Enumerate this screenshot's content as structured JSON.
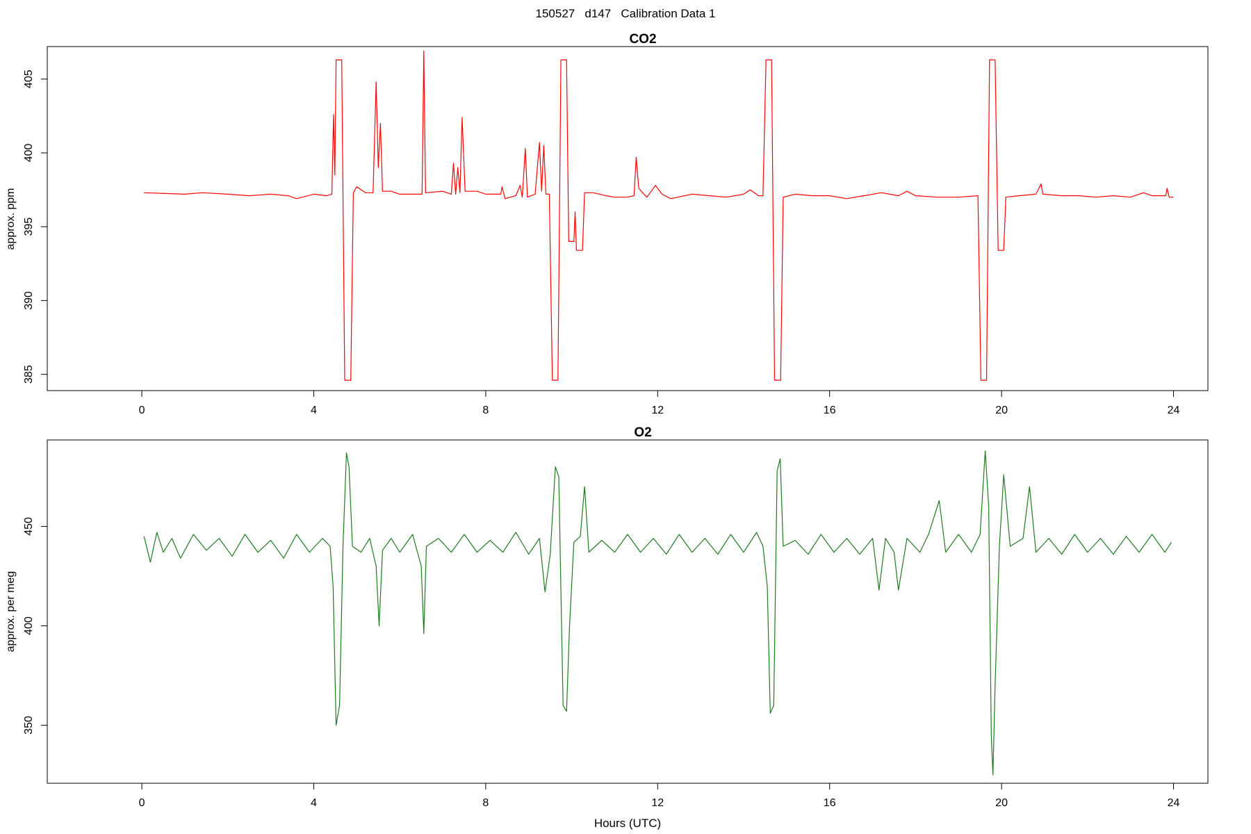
{
  "figure_title": "150527   d147   Calibration Data 1",
  "chart_data": [
    {
      "type": "line",
      "title": "CO2",
      "xlabel": "",
      "ylabel": "approx. ppm",
      "xlim": [
        -2.2,
        24.8
      ],
      "ylim": [
        383.9,
        407.2
      ],
      "xticks": [
        0,
        4,
        8,
        12,
        16,
        20,
        24
      ],
      "yticks": [
        385,
        390,
        395,
        400,
        405
      ],
      "x_tick_labels": [
        "0",
        "4",
        "8",
        "12",
        "16",
        "20",
        "24"
      ],
      "y_tick_labels": [
        "385",
        "390",
        "395",
        "400",
        "405"
      ],
      "grid": false,
      "series": [
        {
          "color": "#ff0000",
          "points": [
            [
              0.05,
              397.3
            ],
            [
              1.0,
              397.2
            ],
            [
              1.4,
              397.3
            ],
            [
              2.0,
              397.2
            ],
            [
              2.5,
              397.1
            ],
            [
              3.0,
              397.2
            ],
            [
              3.4,
              397.1
            ],
            [
              3.6,
              396.9
            ],
            [
              4.0,
              397.2
            ],
            [
              4.3,
              397.1
            ],
            [
              4.42,
              397.2
            ],
            [
              4.46,
              402.6
            ],
            [
              4.49,
              398.5
            ],
            [
              4.52,
              406.3
            ],
            [
              4.65,
              406.3
            ],
            [
              4.72,
              384.6
            ],
            [
              4.86,
              384.6
            ],
            [
              4.92,
              397.3
            ],
            [
              5.0,
              397.7
            ],
            [
              5.2,
              397.3
            ],
            [
              5.38,
              397.3
            ],
            [
              5.45,
              404.8
            ],
            [
              5.5,
              399.0
            ],
            [
              5.55,
              402.0
            ],
            [
              5.6,
              397.4
            ],
            [
              5.8,
              397.4
            ],
            [
              6.0,
              397.2
            ],
            [
              6.3,
              397.2
            ],
            [
              6.52,
              397.2
            ],
            [
              6.56,
              406.9
            ],
            [
              6.6,
              397.3
            ],
            [
              7.0,
              397.4
            ],
            [
              7.2,
              397.2
            ],
            [
              7.25,
              399.3
            ],
            [
              7.3,
              397.2
            ],
            [
              7.35,
              399.0
            ],
            [
              7.4,
              397.3
            ],
            [
              7.45,
              402.4
            ],
            [
              7.52,
              397.4
            ],
            [
              7.8,
              397.4
            ],
            [
              8.0,
              397.2
            ],
            [
              8.35,
              397.2
            ],
            [
              8.38,
              397.7
            ],
            [
              8.45,
              396.9
            ],
            [
              8.7,
              397.1
            ],
            [
              8.8,
              397.8
            ],
            [
              8.85,
              397.0
            ],
            [
              8.92,
              400.3
            ],
            [
              8.97,
              397.0
            ],
            [
              9.15,
              397.2
            ],
            [
              9.25,
              400.7
            ],
            [
              9.3,
              397.4
            ],
            [
              9.35,
              400.5
            ],
            [
              9.4,
              397.2
            ],
            [
              9.48,
              397.2
            ],
            [
              9.55,
              384.6
            ],
            [
              9.68,
              384.6
            ],
            [
              9.75,
              406.3
            ],
            [
              9.88,
              406.3
            ],
            [
              9.93,
              394.0
            ],
            [
              10.05,
              394.0
            ],
            [
              10.08,
              396.0
            ],
            [
              10.11,
              393.4
            ],
            [
              10.25,
              393.4
            ],
            [
              10.3,
              397.3
            ],
            [
              10.5,
              397.3
            ],
            [
              10.8,
              397.1
            ],
            [
              11.0,
              397.0
            ],
            [
              11.3,
              397.0
            ],
            [
              11.45,
              397.1
            ],
            [
              11.5,
              399.7
            ],
            [
              11.56,
              397.6
            ],
            [
              11.65,
              397.3
            ],
            [
              11.75,
              397.0
            ],
            [
              11.95,
              397.8
            ],
            [
              12.1,
              397.2
            ],
            [
              12.3,
              396.9
            ],
            [
              12.8,
              397.2
            ],
            [
              13.2,
              397.1
            ],
            [
              13.6,
              397.0
            ],
            [
              14.0,
              397.2
            ],
            [
              14.15,
              397.5
            ],
            [
              14.35,
              397.1
            ],
            [
              14.45,
              397.1
            ],
            [
              14.52,
              406.3
            ],
            [
              14.65,
              406.3
            ],
            [
              14.72,
              384.6
            ],
            [
              14.86,
              384.6
            ],
            [
              14.92,
              397.0
            ],
            [
              15.2,
              397.2
            ],
            [
              15.6,
              397.1
            ],
            [
              16.0,
              397.1
            ],
            [
              16.4,
              396.9
            ],
            [
              16.8,
              397.1
            ],
            [
              17.2,
              397.3
            ],
            [
              17.6,
              397.1
            ],
            [
              17.8,
              397.4
            ],
            [
              18.0,
              397.1
            ],
            [
              18.5,
              397.0
            ],
            [
              19.0,
              397.0
            ],
            [
              19.45,
              397.1
            ],
            [
              19.52,
              384.6
            ],
            [
              19.65,
              384.6
            ],
            [
              19.72,
              406.3
            ],
            [
              19.85,
              406.3
            ],
            [
              19.92,
              393.4
            ],
            [
              20.05,
              393.4
            ],
            [
              20.1,
              397.0
            ],
            [
              20.4,
              397.1
            ],
            [
              20.8,
              397.2
            ],
            [
              20.92,
              397.9
            ],
            [
              20.96,
              397.2
            ],
            [
              21.4,
              397.1
            ],
            [
              21.8,
              397.1
            ],
            [
              22.2,
              397.0
            ],
            [
              22.6,
              397.1
            ],
            [
              23.0,
              397.0
            ],
            [
              23.3,
              397.3
            ],
            [
              23.5,
              397.1
            ],
            [
              23.82,
              397.1
            ],
            [
              23.85,
              397.6
            ],
            [
              23.9,
              397.0
            ],
            [
              24.0,
              397.0
            ]
          ]
        }
      ]
    },
    {
      "type": "line",
      "title": "O2",
      "xlabel": "Hours (UTC)",
      "ylabel": "approx. per meg",
      "xlim": [
        -2.2,
        24.8
      ],
      "ylim": [
        320.8,
        493.5
      ],
      "xticks": [
        0,
        4,
        8,
        12,
        16,
        20,
        24
      ],
      "yticks": [
        350,
        400,
        450
      ],
      "x_tick_labels": [
        "0",
        "4",
        "8",
        "12",
        "16",
        "20",
        "24"
      ],
      "y_tick_labels": [
        "350",
        "400",
        "450"
      ],
      "grid": false,
      "series": [
        {
          "color": "#1f7a1f",
          "points": [
            [
              0.05,
              445
            ],
            [
              0.2,
              432
            ],
            [
              0.35,
              447
            ],
            [
              0.5,
              437
            ],
            [
              0.7,
              444
            ],
            [
              0.9,
              434
            ],
            [
              1.2,
              446
            ],
            [
              1.5,
              438
            ],
            [
              1.8,
              444
            ],
            [
              2.1,
              435
            ],
            [
              2.4,
              446
            ],
            [
              2.7,
              437
            ],
            [
              3.0,
              443
            ],
            [
              3.3,
              434
            ],
            [
              3.6,
              446
            ],
            [
              3.9,
              437
            ],
            [
              4.2,
              444
            ],
            [
              4.38,
              440
            ],
            [
              4.45,
              420
            ],
            [
              4.52,
              350
            ],
            [
              4.6,
              360
            ],
            [
              4.68,
              440
            ],
            [
              4.76,
              487
            ],
            [
              4.82,
              480
            ],
            [
              4.9,
              440
            ],
            [
              5.1,
              437
            ],
            [
              5.3,
              444
            ],
            [
              5.45,
              430
            ],
            [
              5.52,
              400
            ],
            [
              5.6,
              438
            ],
            [
              5.8,
              444
            ],
            [
              6.0,
              437
            ],
            [
              6.3,
              446
            ],
            [
              6.5,
              430
            ],
            [
              6.56,
              396
            ],
            [
              6.62,
              440
            ],
            [
              6.9,
              444
            ],
            [
              7.2,
              437
            ],
            [
              7.5,
              446
            ],
            [
              7.8,
              437
            ],
            [
              8.1,
              443
            ],
            [
              8.4,
              437
            ],
            [
              8.7,
              447
            ],
            [
              9.0,
              436
            ],
            [
              9.25,
              444
            ],
            [
              9.38,
              417
            ],
            [
              9.5,
              436
            ],
            [
              9.62,
              480
            ],
            [
              9.7,
              475
            ],
            [
              9.8,
              360
            ],
            [
              9.88,
              357
            ],
            [
              9.95,
              400
            ],
            [
              10.05,
              442
            ],
            [
              10.2,
              445
            ],
            [
              10.3,
              470
            ],
            [
              10.4,
              437
            ],
            [
              10.7,
              443
            ],
            [
              11.0,
              437
            ],
            [
              11.3,
              446
            ],
            [
              11.6,
              437
            ],
            [
              11.9,
              444
            ],
            [
              12.2,
              436
            ],
            [
              12.5,
              446
            ],
            [
              12.8,
              437
            ],
            [
              13.1,
              444
            ],
            [
              13.4,
              436
            ],
            [
              13.7,
              446
            ],
            [
              14.0,
              437
            ],
            [
              14.3,
              447
            ],
            [
              14.45,
              440
            ],
            [
              14.55,
              420
            ],
            [
              14.62,
              356
            ],
            [
              14.7,
              360
            ],
            [
              14.78,
              478
            ],
            [
              14.85,
              484
            ],
            [
              14.92,
              440
            ],
            [
              15.2,
              443
            ],
            [
              15.5,
              436
            ],
            [
              15.8,
              446
            ],
            [
              16.1,
              437
            ],
            [
              16.4,
              444
            ],
            [
              16.7,
              436
            ],
            [
              17.0,
              444
            ],
            [
              17.15,
              418
            ],
            [
              17.3,
              444
            ],
            [
              17.5,
              437
            ],
            [
              17.6,
              418
            ],
            [
              17.8,
              444
            ],
            [
              18.1,
              437
            ],
            [
              18.3,
              446
            ],
            [
              18.55,
              463
            ],
            [
              18.7,
              437
            ],
            [
              19.0,
              446
            ],
            [
              19.3,
              437
            ],
            [
              19.5,
              446
            ],
            [
              19.62,
              488
            ],
            [
              19.7,
              460
            ],
            [
              19.76,
              345
            ],
            [
              19.8,
              325
            ],
            [
              19.85,
              370
            ],
            [
              19.95,
              440
            ],
            [
              20.05,
              476
            ],
            [
              20.2,
              440
            ],
            [
              20.5,
              444
            ],
            [
              20.65,
              470
            ],
            [
              20.8,
              437
            ],
            [
              21.1,
              444
            ],
            [
              21.4,
              436
            ],
            [
              21.7,
              446
            ],
            [
              22.0,
              437
            ],
            [
              22.3,
              444
            ],
            [
              22.6,
              436
            ],
            [
              22.9,
              445
            ],
            [
              23.2,
              437
            ],
            [
              23.5,
              446
            ],
            [
              23.8,
              437
            ],
            [
              23.95,
              442
            ]
          ]
        }
      ]
    }
  ]
}
